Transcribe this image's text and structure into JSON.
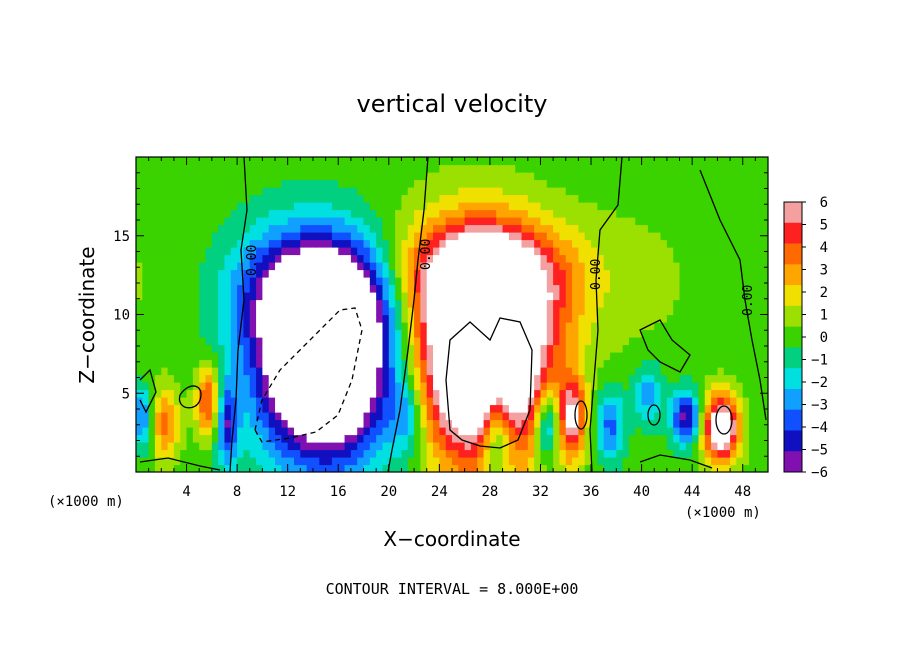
{
  "chart_data": {
    "type": "heatmap",
    "title": "vertical velocity",
    "xlabel": "X−coordinate",
    "ylabel": "Z−coordinate",
    "x_unit": "(×1000 m)",
    "x_unit_right": "(×1000 m)",
    "xlim": [
      0,
      50
    ],
    "ylim": [
      0,
      20
    ],
    "x_ticks": [
      4,
      8,
      12,
      16,
      20,
      24,
      28,
      32,
      36,
      40,
      44,
      48
    ],
    "y_ticks": [
      5,
      10,
      15
    ],
    "colorbar": {
      "min": -6,
      "max": 6,
      "ticks": [
        "6",
        "5",
        "4",
        "3",
        "2",
        "1",
        "0",
        "−1",
        "−2",
        "−3",
        "−4",
        "−5",
        "−6"
      ],
      "colors": [
        "#f4a0a0",
        "#ff2020",
        "#ff6a00",
        "#ffa500",
        "#f0e000",
        "#9be000",
        "#3ad300",
        "#00d080",
        "#00e0e0",
        "#10a0ff",
        "#1050ff",
        "#1010c0",
        "#8010b0"
      ]
    },
    "contour_interval_text": "CONTOUR INTERVAL = 8.000E+00",
    "contour_labels": [
      "0.00",
      "0.00",
      "0.00",
      "0.00"
    ],
    "features": [
      {
        "name": "downdraft",
        "x": 14,
        "z": 7,
        "value": -6
      },
      {
        "name": "updraft",
        "x": 27.5,
        "z": 7.5,
        "value": 6
      }
    ]
  }
}
